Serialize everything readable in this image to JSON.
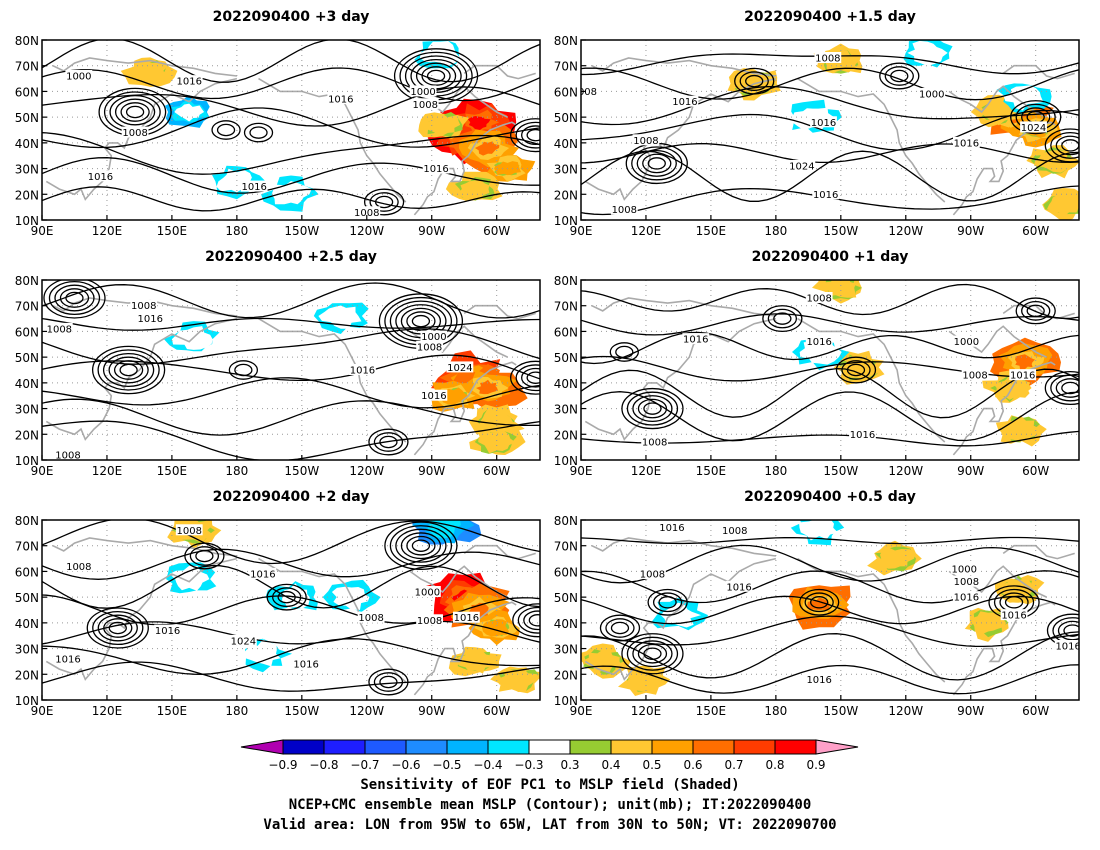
{
  "chart_data": [
    {
      "type": "heatmap",
      "title": "2022090400  +3 day",
      "x_ticks": [
        "90E",
        "120E",
        "150E",
        "180",
        "150W",
        "120W",
        "90W",
        "60W"
      ],
      "y_ticks": [
        "10N",
        "20N",
        "30N",
        "40N",
        "50N",
        "60N",
        "70N",
        "80N"
      ],
      "xlim": [
        90,
        320
      ],
      "ylim": [
        10,
        80
      ],
      "grid": true,
      "contour_labels": [
        {
          "value": "1000",
          "lon": 107,
          "lat": 66
        },
        {
          "value": "1016",
          "lon": 158,
          "lat": 64
        },
        {
          "value": "1008",
          "lon": 133,
          "lat": 44
        },
        {
          "value": "1016",
          "lon": 117,
          "lat": 27
        },
        {
          "value": "1016",
          "lon": 188,
          "lat": 23
        },
        {
          "value": "1016",
          "lon": 228,
          "lat": 57
        },
        {
          "value": "1000",
          "lon": 266,
          "lat": 60
        },
        {
          "value": "1008",
          "lon": 267,
          "lat": 55
        },
        {
          "value": "1016",
          "lon": 272,
          "lat": 30
        },
        {
          "value": "1008",
          "lon": 240,
          "lat": 13
        }
      ],
      "sensitivity_regions": [
        {
          "lon": 285,
          "lat": 42,
          "value": 0.8
        },
        {
          "lon": 292,
          "lat": 48,
          "value": 0.8
        },
        {
          "lon": 296,
          "lat": 38,
          "value": 0.6
        },
        {
          "lon": 305,
          "lat": 30,
          "value": 0.5
        },
        {
          "lon": 275,
          "lat": 47,
          "value": 0.4
        },
        {
          "lon": 290,
          "lat": 22,
          "value": 0.4
        },
        {
          "lon": 158,
          "lat": 52,
          "value": -0.5
        },
        {
          "lon": 180,
          "lat": 25,
          "value": -0.4
        },
        {
          "lon": 205,
          "lat": 20,
          "value": -0.4
        },
        {
          "lon": 274,
          "lat": 75,
          "value": -0.4
        },
        {
          "lon": 140,
          "lat": 68,
          "value": 0.4
        },
        {
          "lon": 100,
          "lat": 73,
          "value": -0.3
        }
      ],
      "pressure_centers": [
        {
          "lon": 133,
          "lat": 52,
          "rings": 6
        },
        {
          "lon": 272,
          "lat": 66,
          "rings": 7
        },
        {
          "lon": 248,
          "lat": 17,
          "rings": 3
        },
        {
          "lon": 318,
          "lat": 43,
          "rings": 4
        },
        {
          "lon": 175,
          "lat": 45,
          "rings": 2
        },
        {
          "lon": 190,
          "lat": 44,
          "rings": 2
        }
      ]
    },
    {
      "type": "heatmap",
      "title": "2022090400  +1.5 day",
      "x_ticks": [
        "90E",
        "120E",
        "150E",
        "180",
        "150W",
        "120W",
        "90W",
        "60W"
      ],
      "y_ticks": [
        "10N",
        "20N",
        "30N",
        "40N",
        "50N",
        "60N",
        "70N",
        "80N"
      ],
      "xlim": [
        90,
        320
      ],
      "ylim": [
        10,
        80
      ],
      "grid": true,
      "contour_labels": [
        {
          "value": "1008",
          "lon": 204,
          "lat": 73
        },
        {
          "value": "008",
          "lon": 93,
          "lat": 60
        },
        {
          "value": "1016",
          "lon": 138,
          "lat": 56
        },
        {
          "value": "1000",
          "lon": 252,
          "lat": 59
        },
        {
          "value": "1016",
          "lon": 202,
          "lat": 48
        },
        {
          "value": "1024",
          "lon": 299,
          "lat": 46
        },
        {
          "value": "1008",
          "lon": 120,
          "lat": 41
        },
        {
          "value": "1016",
          "lon": 268,
          "lat": 40
        },
        {
          "value": "1024",
          "lon": 192,
          "lat": 31
        },
        {
          "value": "1016",
          "lon": 203,
          "lat": 20
        },
        {
          "value": "1008",
          "lon": 110,
          "lat": 14
        }
      ],
      "sensitivity_regions": [
        {
          "lon": 292,
          "lat": 50,
          "value": 0.6
        },
        {
          "lon": 300,
          "lat": 45,
          "value": 0.5
        },
        {
          "lon": 283,
          "lat": 52,
          "value": 0.4
        },
        {
          "lon": 308,
          "lat": 33,
          "value": 0.4
        },
        {
          "lon": 313,
          "lat": 16,
          "value": 0.4
        },
        {
          "lon": 210,
          "lat": 72,
          "value": 0.4
        },
        {
          "lon": 170,
          "lat": 63,
          "value": 0.4
        },
        {
          "lon": 250,
          "lat": 75,
          "value": -0.4
        },
        {
          "lon": 294,
          "lat": 58,
          "value": -0.4
        },
        {
          "lon": 197,
          "lat": 50,
          "value": -0.4
        },
        {
          "lon": 240,
          "lat": 35,
          "value": -0.3
        },
        {
          "lon": 203,
          "lat": 26,
          "value": -0.3
        }
      ],
      "pressure_centers": [
        {
          "lon": 125,
          "lat": 32,
          "rings": 5
        },
        {
          "lon": 316,
          "lat": 39,
          "rings": 4
        },
        {
          "lon": 170,
          "lat": 64,
          "rings": 3
        },
        {
          "lon": 237,
          "lat": 66,
          "rings": 3
        },
        {
          "lon": 300,
          "lat": 50,
          "rings": 4
        }
      ]
    },
    {
      "type": "heatmap",
      "title": "2022090400  +2.5 day",
      "x_ticks": [
        "90E",
        "120E",
        "150E",
        "180",
        "150W",
        "120W",
        "90W",
        "60W"
      ],
      "y_ticks": [
        "10N",
        "20N",
        "30N",
        "40N",
        "50N",
        "60N",
        "70N",
        "80N"
      ],
      "xlim": [
        90,
        320
      ],
      "ylim": [
        10,
        80
      ],
      "grid": true,
      "contour_labels": [
        {
          "value": "1008",
          "lon": 137,
          "lat": 70
        },
        {
          "value": "1016",
          "lon": 140,
          "lat": 65
        },
        {
          "value": "1008",
          "lon": 98,
          "lat": 61
        },
        {
          "value": "1000",
          "lon": 271,
          "lat": 58
        },
        {
          "value": "1008",
          "lon": 269,
          "lat": 54
        },
        {
          "value": "1024",
          "lon": 283,
          "lat": 46
        },
        {
          "value": "1016",
          "lon": 238,
          "lat": 45
        },
        {
          "value": "1016",
          "lon": 271,
          "lat": 35
        },
        {
          "value": "1008",
          "lon": 102,
          "lat": 12
        }
      ],
      "sensitivity_regions": [
        {
          "lon": 288,
          "lat": 42,
          "value": 0.7
        },
        {
          "lon": 296,
          "lat": 38,
          "value": 0.6
        },
        {
          "lon": 280,
          "lat": 35,
          "value": 0.5
        },
        {
          "lon": 300,
          "lat": 25,
          "value": 0.4
        },
        {
          "lon": 300,
          "lat": 17,
          "value": 0.4
        },
        {
          "lon": 160,
          "lat": 57,
          "value": -0.4
        },
        {
          "lon": 228,
          "lat": 66,
          "value": -0.4
        },
        {
          "lon": 110,
          "lat": 70,
          "value": -0.3
        }
      ],
      "pressure_centers": [
        {
          "lon": 130,
          "lat": 45,
          "rings": 6
        },
        {
          "lon": 265,
          "lat": 64,
          "rings": 7
        },
        {
          "lon": 250,
          "lat": 17,
          "rings": 3
        },
        {
          "lon": 318,
          "lat": 42,
          "rings": 4
        },
        {
          "lon": 105,
          "lat": 73,
          "rings": 5
        },
        {
          "lon": 183,
          "lat": 45,
          "rings": 2
        }
      ]
    },
    {
      "type": "heatmap",
      "title": "2022090400  +1 day",
      "x_ticks": [
        "90E",
        "120E",
        "150E",
        "180",
        "150W",
        "120W",
        "90W",
        "60W"
      ],
      "y_ticks": [
        "10N",
        "20N",
        "30N",
        "40N",
        "50N",
        "60N",
        "70N",
        "80N"
      ],
      "xlim": [
        90,
        320
      ],
      "ylim": [
        10,
        80
      ],
      "grid": true,
      "contour_labels": [
        {
          "value": "1008",
          "lon": 200,
          "lat": 73
        },
        {
          "value": "1016",
          "lon": 143,
          "lat": 57
        },
        {
          "value": "1016",
          "lon": 200,
          "lat": 56
        },
        {
          "value": "1000",
          "lon": 268,
          "lat": 56
        },
        {
          "value": "1008",
          "lon": 272,
          "lat": 43
        },
        {
          "value": "1016",
          "lon": 294,
          "lat": 43
        },
        {
          "value": "1016",
          "lon": 220,
          "lat": 20
        },
        {
          "value": "1008",
          "lon": 124,
          "lat": 17
        }
      ],
      "sensitivity_regions": [
        {
          "lon": 295,
          "lat": 48,
          "value": 0.6
        },
        {
          "lon": 288,
          "lat": 38,
          "value": 0.4
        },
        {
          "lon": 218,
          "lat": 46,
          "value": 0.4
        },
        {
          "lon": 293,
          "lat": 22,
          "value": 0.4
        },
        {
          "lon": 210,
          "lat": 77,
          "value": 0.4
        },
        {
          "lon": 300,
          "lat": 75,
          "value": -0.3
        },
        {
          "lon": 200,
          "lat": 52,
          "value": -0.4
        },
        {
          "lon": 255,
          "lat": 65,
          "value": -0.3
        },
        {
          "lon": 100,
          "lat": 42,
          "value": -0.3
        }
      ],
      "pressure_centers": [
        {
          "lon": 123,
          "lat": 30,
          "rings": 5
        },
        {
          "lon": 316,
          "lat": 38,
          "rings": 4
        },
        {
          "lon": 183,
          "lat": 65,
          "rings": 3
        },
        {
          "lon": 300,
          "lat": 68,
          "rings": 3
        },
        {
          "lon": 217,
          "lat": 45,
          "rings": 3
        },
        {
          "lon": 110,
          "lat": 52,
          "rings": 2
        }
      ]
    },
    {
      "type": "heatmap",
      "title": "2022090400  +2 day",
      "x_ticks": [
        "90E",
        "120E",
        "150E",
        "180",
        "150W",
        "120W",
        "90W",
        "60W"
      ],
      "y_ticks": [
        "10N",
        "20N",
        "30N",
        "40N",
        "50N",
        "60N",
        "70N",
        "80N"
      ],
      "xlim": [
        90,
        320
      ],
      "ylim": [
        10,
        80
      ],
      "grid": true,
      "contour_labels": [
        {
          "value": "1008",
          "lon": 158,
          "lat": 76
        },
        {
          "value": "1008",
          "lon": 107,
          "lat": 62
        },
        {
          "value": "1016",
          "lon": 192,
          "lat": 59
        },
        {
          "value": "1000",
          "lon": 268,
          "lat": 52
        },
        {
          "value": "1008",
          "lon": 242,
          "lat": 42
        },
        {
          "value": "1008",
          "lon": 269,
          "lat": 41
        },
        {
          "value": "1016",
          "lon": 286,
          "lat": 42
        },
        {
          "value": "1016",
          "lon": 148,
          "lat": 37
        },
        {
          "value": "1024",
          "lon": 183,
          "lat": 33
        },
        {
          "value": "1016",
          "lon": 212,
          "lat": 24
        },
        {
          "value": "1016",
          "lon": 102,
          "lat": 26
        }
      ],
      "sensitivity_regions": [
        {
          "lon": 285,
          "lat": 50,
          "value": 0.8
        },
        {
          "lon": 292,
          "lat": 45,
          "value": 0.6
        },
        {
          "lon": 300,
          "lat": 38,
          "value": 0.5
        },
        {
          "lon": 290,
          "lat": 25,
          "value": 0.4
        },
        {
          "lon": 310,
          "lat": 18,
          "value": 0.4
        },
        {
          "lon": 160,
          "lat": 76,
          "value": 0.4
        },
        {
          "lon": 233,
          "lat": 50,
          "value": -0.4
        },
        {
          "lon": 207,
          "lat": 50,
          "value": -0.4
        },
        {
          "lon": 192,
          "lat": 28,
          "value": -0.4
        },
        {
          "lon": 158,
          "lat": 57,
          "value": -0.4
        },
        {
          "lon": 275,
          "lat": 78,
          "value": -0.6
        },
        {
          "lon": 200,
          "lat": 64,
          "value": -0.3
        }
      ],
      "pressure_centers": [
        {
          "lon": 125,
          "lat": 38,
          "rings": 5
        },
        {
          "lon": 265,
          "lat": 70,
          "rings": 6
        },
        {
          "lon": 250,
          "lat": 17,
          "rings": 3
        },
        {
          "lon": 319,
          "lat": 41,
          "rings": 4
        },
        {
          "lon": 203,
          "lat": 50,
          "rings": 3
        },
        {
          "lon": 165,
          "lat": 66,
          "rings": 3
        }
      ]
    },
    {
      "type": "heatmap",
      "title": "2022090400  +0.5 day",
      "x_ticks": [
        "90E",
        "120E",
        "150E",
        "180",
        "150W",
        "120W",
        "90W",
        "60W"
      ],
      "y_ticks": [
        "10N",
        "20N",
        "30N",
        "40N",
        "50N",
        "60N",
        "70N",
        "80N"
      ],
      "xlim": [
        90,
        320
      ],
      "ylim": [
        10,
        80
      ],
      "grid": true,
      "contour_labels": [
        {
          "value": "1008",
          "lon": 161,
          "lat": 76
        },
        {
          "value": "1016",
          "lon": 132,
          "lat": 77
        },
        {
          "value": "1008",
          "lon": 123,
          "lat": 59
        },
        {
          "value": "1016",
          "lon": 163,
          "lat": 54
        },
        {
          "value": "1000",
          "lon": 267,
          "lat": 61
        },
        {
          "value": "1008",
          "lon": 268,
          "lat": 56
        },
        {
          "value": "1016",
          "lon": 268,
          "lat": 50
        },
        {
          "value": "1016",
          "lon": 290,
          "lat": 43
        },
        {
          "value": "1016",
          "lon": 315,
          "lat": 31
        },
        {
          "value": "1016",
          "lon": 200,
          "lat": 18
        }
      ],
      "sensitivity_regions": [
        {
          "lon": 200,
          "lat": 47,
          "value": 0.6
        },
        {
          "lon": 292,
          "lat": 53,
          "value": 0.4
        },
        {
          "lon": 278,
          "lat": 40,
          "value": 0.4
        },
        {
          "lon": 120,
          "lat": 18,
          "value": 0.4
        },
        {
          "lon": 100,
          "lat": 25,
          "value": 0.4
        },
        {
          "lon": 235,
          "lat": 65,
          "value": 0.4
        },
        {
          "lon": 135,
          "lat": 43,
          "value": -0.4
        },
        {
          "lon": 200,
          "lat": 77,
          "value": -0.4
        },
        {
          "lon": 295,
          "lat": 73,
          "value": -0.3
        },
        {
          "lon": 118,
          "lat": 75,
          "value": -0.3
        }
      ],
      "pressure_centers": [
        {
          "lon": 123,
          "lat": 28,
          "rings": 5
        },
        {
          "lon": 317,
          "lat": 37,
          "rings": 4
        },
        {
          "lon": 200,
          "lat": 48,
          "rings": 3
        },
        {
          "lon": 290,
          "lat": 48,
          "rings": 4
        },
        {
          "lon": 130,
          "lat": 48,
          "rings": 3
        },
        {
          "lon": 108,
          "lat": 38,
          "rings": 3
        }
      ]
    }
  ],
  "colorbar": {
    "levels": [
      "-0.9",
      "-0.8",
      "-0.7",
      "-0.6",
      "-0.5",
      "-0.4",
      "-0.3",
      "0.3",
      "0.4",
      "0.5",
      "0.6",
      "0.7",
      "0.8",
      "0.9"
    ],
    "colors": [
      "#b000b0",
      "#0000c8",
      "#1e1eff",
      "#1e5aff",
      "#1e8cff",
      "#00b4ff",
      "#00e6ff",
      "#ffffff",
      "#96cc32",
      "#ffc832",
      "#ffa000",
      "#ff6e00",
      "#ff3c00",
      "#ff0000",
      "#ffa0c8"
    ]
  },
  "land_color": "#aaaaaa",
  "captions": {
    "line1": "Sensitivity of EOF PC1 to MSLP field (Shaded)",
    "line2": "NCEP+CMC ensemble mean MSLP (Contour); unit(mb); IT:2022090400",
    "line3": "Valid area: LON from 95W to 65W, LAT from 30N to 50N; VT: 2022090700"
  }
}
